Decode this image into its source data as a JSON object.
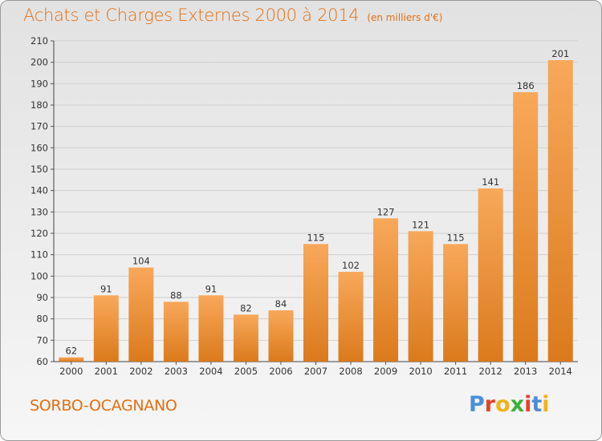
{
  "title": "Achats et Charges Externes 2000 à 2014",
  "unit": "(en milliers d'€)",
  "commune": "SORBO-OCAGNANO",
  "logo": "Proxiti",
  "logo_colors": [
    "#4a8fd8",
    "#e8412a",
    "#f0b418",
    "#3fae3a",
    "#e8412a",
    "#4a8fd8",
    "#f0b418"
  ],
  "colors": {
    "bar_light": "#f8a85a",
    "bar_dark": "#db7a1c",
    "title": "#e36f12",
    "grid": "#cfcfcf"
  },
  "chart_data": {
    "type": "bar",
    "categories": [
      "2000",
      "2001",
      "2002",
      "2003",
      "2004",
      "2005",
      "2006",
      "2007",
      "2008",
      "2009",
      "2010",
      "2011",
      "2012",
      "2013",
      "2014"
    ],
    "values": [
      62,
      91,
      104,
      88,
      91,
      82,
      84,
      115,
      102,
      127,
      121,
      115,
      141,
      186,
      201
    ],
    "ylim": [
      60,
      210
    ],
    "yticks": [
      60,
      70,
      80,
      90,
      100,
      110,
      120,
      130,
      140,
      150,
      160,
      170,
      180,
      190,
      200,
      210
    ],
    "grid": true,
    "xlabel": "",
    "ylabel": ""
  }
}
